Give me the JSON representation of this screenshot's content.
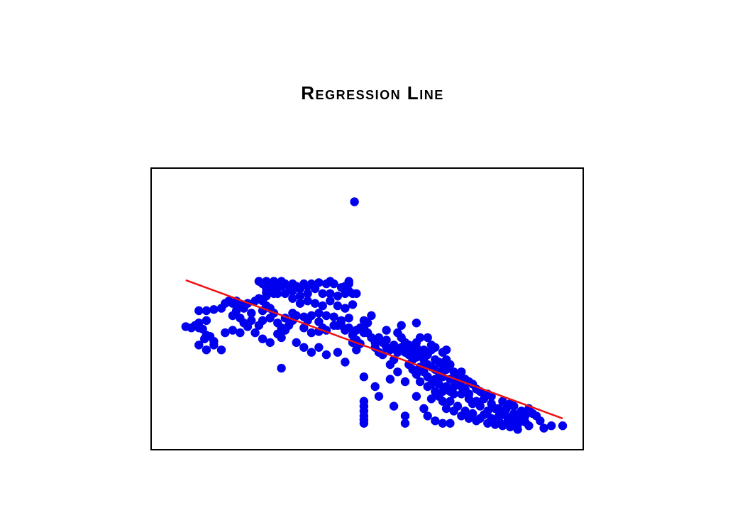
{
  "chart_data": {
    "type": "scatter",
    "title": "Regression Line",
    "xlabel": "",
    "ylabel": "",
    "xlim": [
      0,
      100
    ],
    "ylim": [
      0,
      100
    ],
    "grid": false,
    "legend": "none",
    "colors": {
      "points": "#0000ee",
      "line": "#ee1111",
      "frame": "#000000"
    },
    "series": [
      {
        "points": [
          [
            49.5,
            95.5
          ],
          [
            4.5,
            44.5
          ],
          [
            6,
            44
          ],
          [
            7,
            45
          ],
          [
            8,
            44
          ],
          [
            9,
            43.5
          ],
          [
            10,
            41
          ],
          [
            9.5,
            39.5
          ],
          [
            11,
            40.5
          ],
          [
            12,
            38.5
          ],
          [
            14,
            35
          ],
          [
            8,
            46
          ],
          [
            10,
            47
          ],
          [
            8,
            51
          ],
          [
            10,
            51
          ],
          [
            12,
            51.5
          ],
          [
            14,
            52
          ],
          [
            15,
            54
          ],
          [
            16,
            55
          ],
          [
            17,
            54
          ],
          [
            18,
            55
          ],
          [
            19,
            53.5
          ],
          [
            20,
            52
          ],
          [
            21,
            54
          ],
          [
            18,
            51
          ],
          [
            17,
            49
          ],
          [
            19,
            48
          ],
          [
            20,
            46
          ],
          [
            22,
            47
          ],
          [
            21,
            44.5
          ],
          [
            23,
            42
          ],
          [
            24,
            45
          ],
          [
            25,
            47
          ],
          [
            22,
            50
          ],
          [
            23,
            55
          ],
          [
            24,
            56
          ],
          [
            25,
            55
          ],
          [
            26,
            53
          ],
          [
            25,
            51
          ],
          [
            27,
            52
          ],
          [
            28,
            50
          ],
          [
            27,
            48
          ],
          [
            29,
            46
          ],
          [
            30,
            44
          ],
          [
            29,
            41.5
          ],
          [
            31,
            43
          ],
          [
            32,
            45
          ],
          [
            31,
            48
          ],
          [
            33,
            47
          ],
          [
            34,
            49
          ],
          [
            26,
            57
          ],
          [
            24,
            63
          ],
          [
            25,
            62
          ],
          [
            26,
            63
          ],
          [
            27,
            62
          ],
          [
            28,
            63
          ],
          [
            29,
            62
          ],
          [
            30,
            63
          ],
          [
            27,
            61
          ],
          [
            28,
            60
          ],
          [
            30,
            61
          ],
          [
            31,
            62
          ],
          [
            32,
            61
          ],
          [
            33,
            62
          ],
          [
            34,
            61
          ],
          [
            35,
            60
          ],
          [
            36,
            62
          ],
          [
            37,
            61
          ],
          [
            38,
            62
          ],
          [
            40,
            62.5
          ],
          [
            42,
            62
          ],
          [
            43,
            63
          ],
          [
            44,
            62
          ],
          [
            46,
            60.5
          ],
          [
            47,
            61
          ],
          [
            48,
            63
          ],
          [
            26,
            60
          ],
          [
            29,
            58
          ],
          [
            31,
            58
          ],
          [
            33,
            59
          ],
          [
            35,
            57
          ],
          [
            37,
            58
          ],
          [
            39,
            60
          ],
          [
            41,
            58
          ],
          [
            43,
            58
          ],
          [
            45,
            57
          ],
          [
            48,
            62
          ],
          [
            48,
            59
          ],
          [
            47,
            58
          ],
          [
            49,
            58
          ],
          [
            26,
            58.5
          ],
          [
            28,
            58
          ],
          [
            33,
            56
          ],
          [
            35,
            54
          ],
          [
            37,
            55
          ],
          [
            39,
            54
          ],
          [
            41,
            53
          ],
          [
            43,
            55
          ],
          [
            45,
            53
          ],
          [
            47,
            52
          ],
          [
            50,
            58
          ],
          [
            49,
            53.5
          ],
          [
            33,
            50
          ],
          [
            36,
            48.5
          ],
          [
            38,
            49
          ],
          [
            40,
            50
          ],
          [
            42,
            49
          ],
          [
            44,
            48.5
          ],
          [
            46,
            47
          ],
          [
            45,
            45
          ],
          [
            48,
            48
          ],
          [
            37,
            47
          ],
          [
            40,
            46.5
          ],
          [
            41,
            44
          ],
          [
            42,
            43
          ],
          [
            40,
            42.5
          ],
          [
            44,
            45
          ],
          [
            46,
            45
          ],
          [
            48,
            44
          ],
          [
            50,
            43
          ],
          [
            52,
            42
          ],
          [
            47,
            43
          ],
          [
            49,
            41
          ],
          [
            36,
            44
          ],
          [
            38,
            42
          ],
          [
            49,
            38
          ],
          [
            50,
            39
          ],
          [
            51,
            37.5
          ],
          [
            50,
            35
          ],
          [
            51,
            44
          ],
          [
            52,
            47
          ],
          [
            53,
            46
          ],
          [
            54,
            49
          ],
          [
            52,
            44
          ],
          [
            53,
            42
          ],
          [
            54,
            40
          ],
          [
            55,
            38
          ],
          [
            56,
            40
          ],
          [
            57,
            38
          ],
          [
            55,
            36
          ],
          [
            56,
            34
          ],
          [
            58,
            36
          ],
          [
            57,
            33
          ],
          [
            59,
            35
          ],
          [
            58,
            39
          ],
          [
            60,
            37
          ],
          [
            61,
            34
          ],
          [
            60,
            31
          ],
          [
            59,
            29
          ],
          [
            61,
            42
          ],
          [
            62,
            40
          ],
          [
            63,
            38
          ],
          [
            62,
            36
          ],
          [
            63,
            34
          ],
          [
            64,
            37
          ],
          [
            65,
            35
          ],
          [
            64,
            33
          ],
          [
            66,
            36
          ],
          [
            67,
            34
          ],
          [
            65,
            31
          ],
          [
            66,
            38
          ],
          [
            67,
            40
          ],
          [
            68,
            35
          ],
          [
            66,
            32
          ],
          [
            68,
            31
          ],
          [
            69,
            33
          ],
          [
            70,
            35
          ],
          [
            71,
            31
          ],
          [
            69,
            29
          ],
          [
            70,
            28
          ],
          [
            72,
            30
          ],
          [
            71,
            27
          ],
          [
            73,
            29
          ],
          [
            74,
            31
          ],
          [
            72,
            26
          ],
          [
            74,
            27
          ],
          [
            75,
            29
          ],
          [
            76,
            26
          ],
          [
            73,
            24
          ],
          [
            75,
            23
          ],
          [
            77,
            24
          ],
          [
            78,
            26
          ],
          [
            77,
            22
          ],
          [
            76,
            20
          ],
          [
            79,
            23
          ],
          [
            80,
            22
          ],
          [
            78,
            20
          ],
          [
            81,
            21
          ],
          [
            64,
            29
          ],
          [
            65,
            27
          ],
          [
            67,
            28
          ],
          [
            66,
            25
          ],
          [
            68,
            26
          ],
          [
            69,
            24
          ],
          [
            67,
            22
          ],
          [
            70,
            21
          ],
          [
            71,
            23
          ],
          [
            72,
            21
          ],
          [
            74,
            20
          ],
          [
            73,
            18
          ],
          [
            75,
            18
          ],
          [
            76,
            17
          ],
          [
            78,
            17
          ],
          [
            79,
            19
          ],
          [
            80,
            17
          ],
          [
            82,
            19
          ],
          [
            83,
            18
          ],
          [
            85,
            17
          ],
          [
            84,
            15
          ],
          [
            82,
            14
          ],
          [
            80,
            15
          ],
          [
            81,
            13
          ],
          [
            83,
            12
          ],
          [
            86,
            13
          ],
          [
            87,
            11
          ],
          [
            85,
            10
          ],
          [
            84,
            8.5
          ],
          [
            86,
            7
          ],
          [
            88,
            8
          ],
          [
            89,
            9
          ],
          [
            90,
            8
          ],
          [
            88,
            6
          ],
          [
            90,
            5
          ],
          [
            91,
            7
          ],
          [
            92,
            9
          ],
          [
            93,
            7
          ],
          [
            94,
            6
          ],
          [
            93,
            4.5
          ],
          [
            92,
            5
          ],
          [
            95,
            5.5
          ],
          [
            88,
            11
          ],
          [
            90,
            11
          ],
          [
            92,
            12
          ],
          [
            94,
            10
          ],
          [
            95,
            8
          ],
          [
            96,
            11
          ],
          [
            97,
            9
          ],
          [
            98,
            8
          ],
          [
            99,
            6
          ],
          [
            86,
            16
          ],
          [
            89,
            14
          ],
          [
            91,
            13
          ],
          [
            69,
            20
          ],
          [
            71,
            18
          ],
          [
            72,
            16
          ],
          [
            70,
            15
          ],
          [
            73,
            14
          ],
          [
            75,
            14
          ],
          [
            77,
            12
          ],
          [
            74,
            11
          ],
          [
            76,
            10
          ],
          [
            79,
            10
          ],
          [
            78,
            8
          ],
          [
            80,
            7
          ],
          [
            82,
            6
          ],
          [
            81,
            9
          ],
          [
            83,
            7
          ],
          [
            85,
            5
          ],
          [
            87,
            4.5
          ],
          [
            89,
            4
          ],
          [
            91,
            3.5
          ],
          [
            93,
            2.5
          ],
          [
            96,
            4
          ],
          [
            100,
            3
          ],
          [
            102,
            4
          ],
          [
            105,
            4
          ],
          [
            52,
            24
          ],
          [
            52,
            14
          ],
          [
            52,
            12
          ],
          [
            52,
            10
          ],
          [
            52,
            8
          ],
          [
            52,
            6.5
          ],
          [
            52,
            5
          ],
          [
            55,
            20
          ],
          [
            56,
            16
          ],
          [
            59,
            23
          ],
          [
            61,
            26
          ],
          [
            63,
            22
          ],
          [
            60,
            12
          ],
          [
            63,
            8
          ],
          [
            66,
            16
          ],
          [
            68,
            11
          ],
          [
            69,
            8
          ],
          [
            71,
            6
          ],
          [
            73,
            5
          ],
          [
            75,
            5
          ],
          [
            63,
            5
          ],
          [
            8,
            37
          ],
          [
            10,
            35
          ],
          [
            12,
            37
          ],
          [
            15,
            42
          ],
          [
            17,
            43
          ],
          [
            19,
            42
          ],
          [
            25,
            39.5
          ],
          [
            27,
            38
          ],
          [
            30,
            40
          ],
          [
            34,
            38
          ],
          [
            36,
            36
          ],
          [
            38,
            34
          ],
          [
            40,
            36
          ],
          [
            42,
            33
          ],
          [
            45,
            34
          ],
          [
            47,
            30
          ],
          [
            30,
            27.5
          ],
          [
            58,
            43
          ],
          [
            62,
            45
          ],
          [
            66,
            46
          ],
          [
            69,
            40
          ],
          [
            70,
            37
          ],
          [
            71,
            36
          ],
          [
            73,
            34
          ],
          [
            74,
            35
          ]
        ]
      }
    ],
    "regression_line": {
      "x": [
        4.5,
        105
      ],
      "y": [
        63.5,
        7
      ]
    }
  }
}
